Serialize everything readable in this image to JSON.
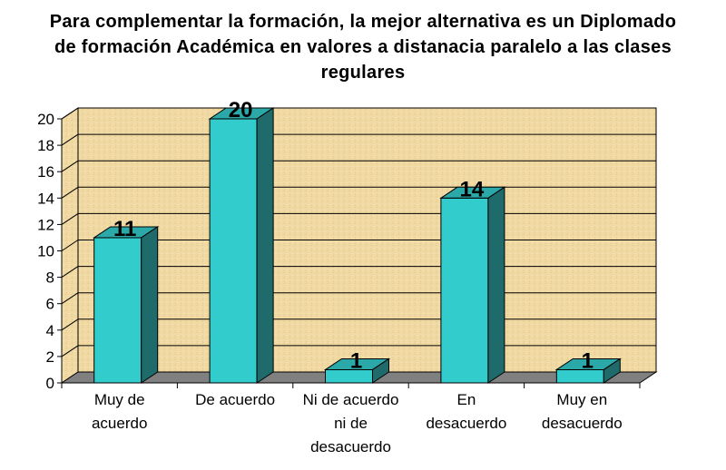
{
  "chart_data": {
    "type": "bar",
    "title_lines": [
      "Para complementar la formación, la mejor alternativa es un Diplomado",
      "de formación Académica en valores a distanacia paralelo a las clases",
      "regulares"
    ],
    "categories": [
      [
        "Muy de",
        "acuerdo"
      ],
      [
        "De acuerdo"
      ],
      [
        "Ni de acuerdo",
        "ni de",
        "desacuerdo"
      ],
      [
        "En",
        "desacuerdo"
      ],
      [
        "Muy en",
        "desacuerdo"
      ]
    ],
    "values": [
      11,
      20,
      1,
      14,
      1
    ],
    "data_labels": [
      "11",
      "20",
      "1",
      "14",
      "1"
    ],
    "ylim": [
      0,
      20
    ],
    "yticks": [
      "0",
      "2",
      "4",
      "6",
      "8",
      "10",
      "12",
      "14",
      "16",
      "18",
      "20"
    ],
    "grid": true,
    "legend": "none",
    "xlabel": "",
    "ylabel": "",
    "colors": {
      "bar_front": "#33cccc",
      "bar_top": "#2ba8a8",
      "bar_side": "#1f6b6b",
      "wall": "#f0d9a2",
      "floor": "#808080",
      "gridline": "#000000"
    }
  }
}
